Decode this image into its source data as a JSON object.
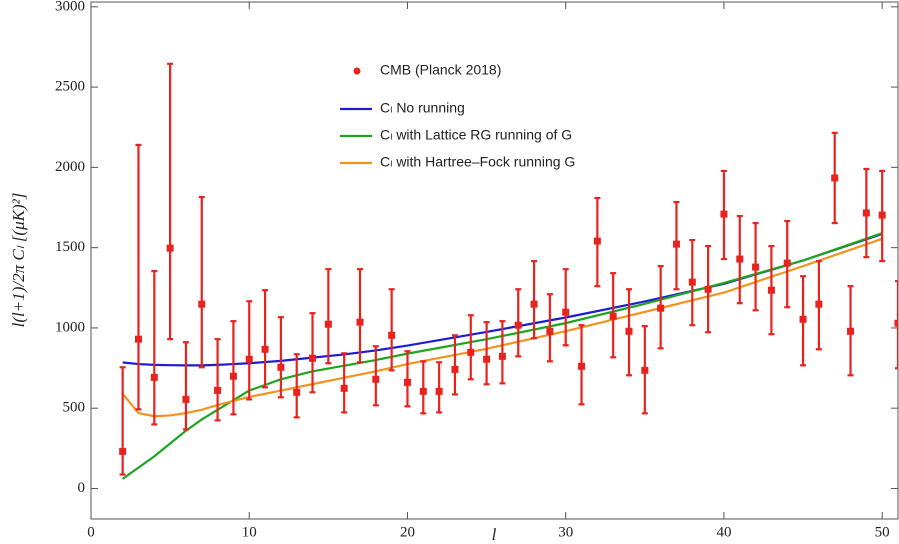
{
  "chart_data": {
    "type": "errorbar-line",
    "x_label": "l",
    "y_label": "l(l+1)/2π Cₗ [(μK)²]",
    "xlim": [
      0,
      51
    ],
    "ylim": [
      -190,
      3030
    ],
    "xticks": [
      0,
      10,
      20,
      30,
      40,
      50
    ],
    "yticks": [
      0,
      500,
      1000,
      1500,
      2000,
      2500,
      3000
    ],
    "points": {
      "name": "CMB (Planck 2018)",
      "color": "#e8231e",
      "x": [
        2,
        3,
        4,
        5,
        6,
        7,
        8,
        9,
        10,
        11,
        12,
        13,
        14,
        15,
        16,
        17,
        18,
        19,
        20,
        21,
        22,
        23,
        24,
        25,
        26,
        27,
        28,
        29,
        30,
        31,
        32,
        33,
        34,
        35,
        36,
        37,
        38,
        39,
        40,
        41,
        42,
        43,
        44,
        45,
        46,
        47,
        48,
        49,
        50,
        51
      ],
      "values": [
        231,
        930,
        692,
        1497,
        555,
        1148,
        611,
        699,
        805,
        867,
        755,
        599,
        811,
        1023,
        624,
        1036,
        680,
        954,
        661,
        605,
        605,
        742,
        848,
        805,
        823,
        1017,
        1148,
        979,
        1098,
        761,
        1541,
        1073,
        979,
        736,
        1123,
        1522,
        1285,
        1241,
        1709,
        1429,
        1379,
        1235,
        1404,
        1054,
        1148,
        1934,
        979,
        1716,
        1703,
        1029
      ],
      "lower": [
        87,
        493,
        399,
        930,
        368,
        755,
        424,
        462,
        555,
        630,
        568,
        443,
        599,
        780,
        474,
        786,
        518,
        736,
        512,
        468,
        474,
        586,
        680,
        649,
        655,
        823,
        936,
        792,
        892,
        524,
        1260,
        817,
        705,
        468,
        873,
        1241,
        1017,
        973,
        1429,
        1154,
        1110,
        961,
        1129,
        767,
        867,
        1653,
        705,
        1441,
        1416,
        749
      ],
      "upper": [
        755,
        2140,
        1354,
        2645,
        911,
        1815,
        930,
        1042,
        1166,
        1235,
        1067,
        836,
        1092,
        1366,
        842,
        1366,
        886,
        1241,
        855,
        792,
        786,
        954,
        1079,
        1036,
        1042,
        1241,
        1416,
        1210,
        1366,
        1017,
        1809,
        1341,
        1241,
        1011,
        1385,
        1784,
        1547,
        1510,
        1978,
        1697,
        1653,
        1510,
        1666,
        1322,
        1416,
        2215,
        1260,
        1990,
        1978,
        1291
      ]
    },
    "series": [
      {
        "name": "Cₗ No running",
        "color": "#1c1cd6",
        "x": [
          2,
          3,
          4,
          5,
          6,
          7,
          8,
          9,
          10,
          12,
          14,
          16,
          18,
          20,
          25,
          30,
          35,
          40,
          45,
          50
        ],
        "values": [
          785,
          775,
          770,
          768,
          767,
          767,
          770,
          775,
          780,
          795,
          815,
          835,
          860,
          890,
          975,
          1065,
          1165,
          1275,
          1420,
          1585
        ]
      },
      {
        "name": "Cₗ with Lattice RG running of G",
        "color": "#1ea51e",
        "x": [
          2,
          3,
          4,
          5,
          6,
          7,
          8,
          9,
          10,
          12,
          14,
          16,
          18,
          20,
          25,
          30,
          35,
          40,
          45,
          50
        ],
        "values": [
          60,
          130,
          200,
          280,
          360,
          430,
          490,
          550,
          610,
          680,
          730,
          765,
          800,
          840,
          930,
          1030,
          1150,
          1280,
          1420,
          1590
        ]
      },
      {
        "name": "Cₗ with Hartree–Fock running G",
        "color": "#f3921c",
        "x": [
          2,
          3,
          4,
          5,
          6,
          7,
          8,
          9,
          10,
          12,
          14,
          16,
          18,
          20,
          25,
          30,
          35,
          40,
          45,
          50
        ],
        "values": [
          590,
          470,
          450,
          455,
          470,
          490,
          520,
          545,
          570,
          610,
          650,
          690,
          730,
          775,
          870,
          980,
          1100,
          1220,
          1385,
          1555
        ]
      }
    ]
  }
}
